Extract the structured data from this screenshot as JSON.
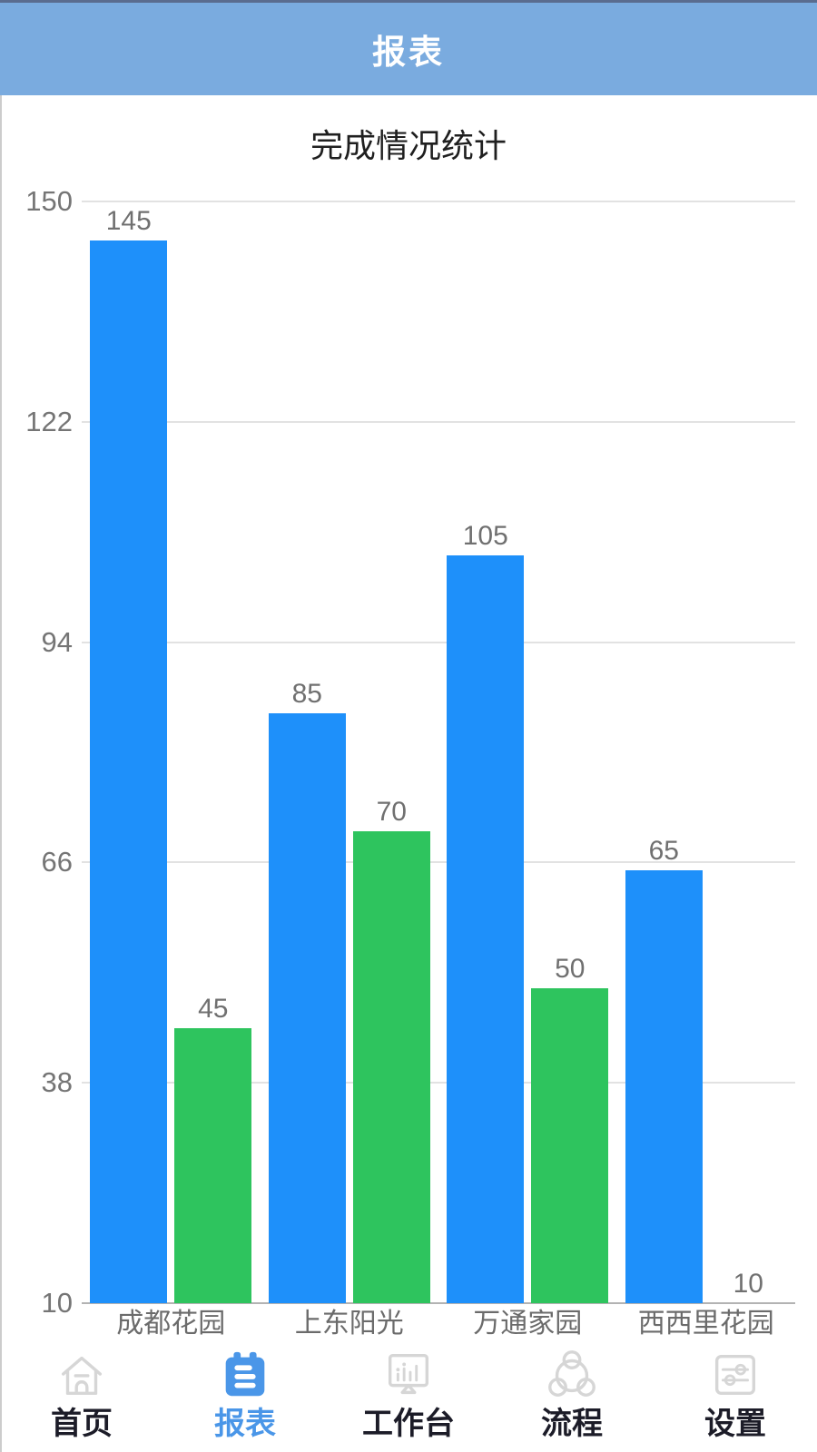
{
  "header": {
    "title": "报表"
  },
  "chart_data": {
    "type": "bar",
    "title": "完成情况统计",
    "categories": [
      "成都花园",
      "上东阳光",
      "万通家园",
      "西西里花园"
    ],
    "series": [
      {
        "name": "blue-series",
        "color": "#1e90fa",
        "values": [
          145,
          85,
          105,
          65
        ]
      },
      {
        "name": "green-series",
        "color": "#2ec45e",
        "values": [
          45,
          70,
          50,
          10
        ]
      }
    ],
    "yticks": [
      150,
      122,
      94,
      66,
      38,
      10
    ],
    "ylim": [
      10,
      150
    ],
    "grid": true,
    "legend_position": "none",
    "value_labels": true
  },
  "colors": {
    "header_bg": "#7aabdf",
    "header_text": "#ffffff",
    "bar_blue": "#1e90fa",
    "bar_green": "#2ec45e",
    "grid_line": "#e2e2e2",
    "axis_line": "#b3b3b3",
    "axis_label": "#757575",
    "nav_active": "#4a96e8",
    "nav_inactive_icon": "#d6d6d6",
    "nav_inactive_text": "#1c1c28"
  },
  "nav": {
    "items": [
      {
        "label": "首页",
        "icon": "home-icon",
        "active": false
      },
      {
        "label": "报表",
        "icon": "report-icon",
        "active": true
      },
      {
        "label": "工作台",
        "icon": "workbench-icon",
        "active": false
      },
      {
        "label": "流程",
        "icon": "process-icon",
        "active": false
      },
      {
        "label": "设置",
        "icon": "settings-icon",
        "active": false
      }
    ]
  }
}
